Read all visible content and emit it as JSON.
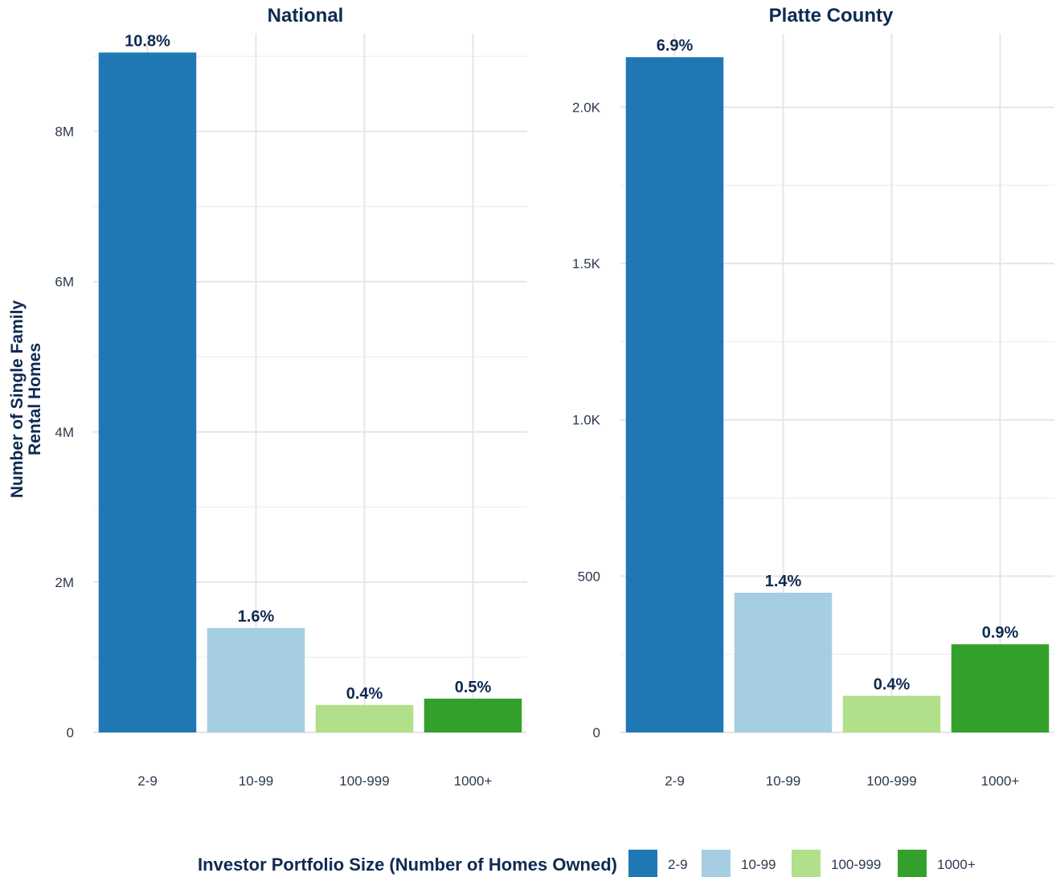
{
  "chart_data": [
    {
      "type": "bar",
      "title": "National",
      "ylabel": "Number of Single Family\nRental Homes",
      "xlabel": "",
      "categories": [
        "2-9",
        "10-99",
        "100-999",
        "1000+"
      ],
      "values": [
        9050000,
        1390000,
        365000,
        450000
      ],
      "data_labels": [
        "10.8%",
        "1.6%",
        "0.4%",
        "0.5%"
      ],
      "ylim": [
        0,
        9300000
      ],
      "yticks": [
        0,
        2000000,
        4000000,
        6000000,
        8000000
      ],
      "ytick_labels": [
        "0",
        "2M",
        "4M",
        "6M",
        "8M"
      ],
      "grid": true
    },
    {
      "type": "bar",
      "title": "Platte County",
      "ylabel": "",
      "xlabel": "",
      "categories": [
        "2-9",
        "10-99",
        "100-999",
        "1000+"
      ],
      "values": [
        2160,
        447,
        117,
        282
      ],
      "data_labels": [
        "6.9%",
        "1.4%",
        "0.4%",
        "0.9%"
      ],
      "ylim": [
        0,
        2235
      ],
      "yticks": [
        0,
        500,
        1000,
        1500,
        2000
      ],
      "ytick_labels": [
        "0",
        "500",
        "1.0K",
        "1.5K",
        "2.0K"
      ],
      "grid": true
    }
  ],
  "legend": {
    "title": "Investor Portfolio Size (Number of Homes Owned)",
    "placement": "bottom",
    "items": [
      {
        "label": "2-9",
        "color": "#1f78b4"
      },
      {
        "label": "10-99",
        "color": "#a6cee3"
      },
      {
        "label": "100-999",
        "color": "#b2df8a"
      },
      {
        "label": "1000+",
        "color": "#33a02c"
      }
    ]
  }
}
